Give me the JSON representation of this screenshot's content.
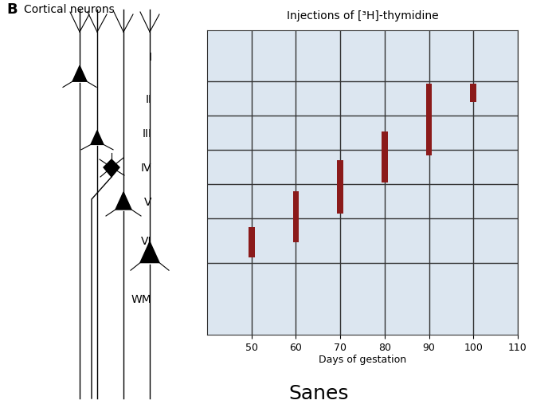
{
  "panel_label": "B",
  "drawing_title": "Cortical neurons",
  "caption": "Sanes",
  "chart_data": {
    "type": "bar",
    "title": "Injections of [³H]-thymidine",
    "x_label": "Days of gestation",
    "x": [
      50,
      60,
      70,
      80,
      90,
      100
    ],
    "starts": [
      5.75,
      4.7,
      3.8,
      2.95,
      1.55,
      1.55
    ],
    "ends": [
      6.65,
      6.2,
      5.35,
      4.45,
      3.65,
      2.1
    ],
    "color": "#8b1a1a",
    "xlim": [
      40,
      110
    ],
    "xticks": [
      50,
      60,
      70,
      80,
      90,
      100,
      110
    ],
    "ylim": [
      8.9,
      0
    ],
    "yticks": [
      {
        "value": 0.75,
        "label": "I"
      },
      {
        "value": 2,
        "label": "II"
      },
      {
        "value": 3,
        "label": "III"
      },
      {
        "value": 4,
        "label": "IV"
      },
      {
        "value": 5,
        "label": "V"
      },
      {
        "value": 6.15,
        "label": "VI"
      },
      {
        "value": 7.85,
        "label": "WM"
      }
    ],
    "layer_boundaries": [
      1.5,
      2.5,
      3.5,
      4.5,
      5.5,
      6.8
    ],
    "grid": true
  }
}
